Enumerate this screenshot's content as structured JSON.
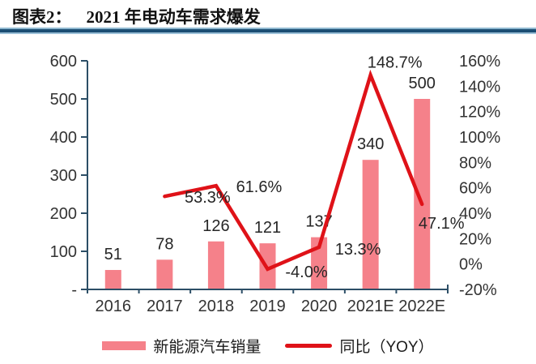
{
  "header": {
    "label": "图表2：",
    "title": "2021 年电动车需求爆发"
  },
  "colors": {
    "bar": "#F5818A",
    "line": "#DF1218",
    "axis": "#2C4E66",
    "separator_dark": "#1C4E74",
    "separator_light": "#8FB8D0",
    "text": "#333333"
  },
  "chart_data": {
    "type": "bar",
    "subtype": "bar+line dual-axis combo",
    "title": "2021 年电动车需求爆发",
    "grid": false,
    "categories": [
      "2016",
      "2017",
      "2018",
      "2019",
      "2020",
      "2021E",
      "2022E"
    ],
    "series": [
      {
        "name": "新能源汽车销量",
        "type": "bar",
        "axis": "left",
        "color": "#F5818A",
        "values": [
          51,
          78,
          126,
          121,
          137,
          340,
          500
        ],
        "labels": [
          "51",
          "78",
          "126",
          "121",
          "137",
          "340",
          "500"
        ]
      },
      {
        "name": "同比（YOY）",
        "type": "line",
        "axis": "right",
        "color": "#DF1218",
        "values": [
          null,
          53.3,
          61.6,
          -4.0,
          13.3,
          148.7,
          47.1
        ],
        "labels": [
          null,
          "53.3%",
          "61.6%",
          "-4.0%",
          "13.3%",
          "148.7%",
          "47.1%"
        ]
      }
    ],
    "left_axis": {
      "min": 0,
      "max": 600,
      "values": [
        600,
        500,
        400,
        300,
        200,
        100,
        0
      ],
      "labels": [
        "600",
        "500",
        "400",
        "300",
        "200",
        "100",
        "-"
      ]
    },
    "right_axis": {
      "min": -20,
      "max": 160,
      "values": [
        160,
        140,
        120,
        100,
        80,
        60,
        40,
        20,
        0,
        -20
      ],
      "labels": [
        "160%",
        "140%",
        "120%",
        "100%",
        "80%",
        "60%",
        "40%",
        "20%",
        "0%",
        "-20%"
      ]
    },
    "legend": {
      "position": "bottom",
      "items": [
        "新能源汽车销量",
        "同比（YOY）"
      ]
    }
  }
}
